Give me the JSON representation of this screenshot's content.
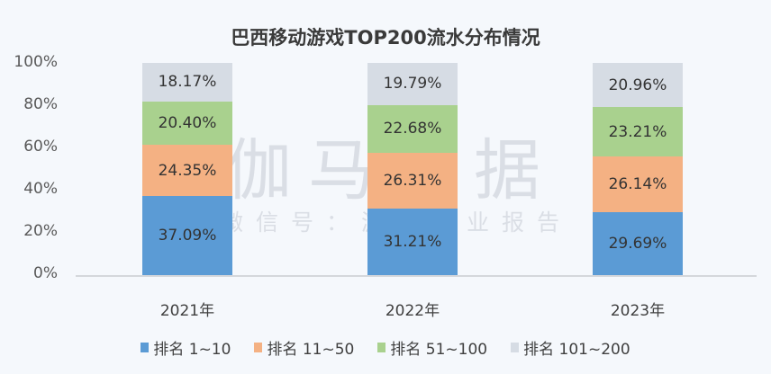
{
  "chart_data": {
    "type": "bar",
    "stacked": true,
    "title": "巴西移动游戏TOP200流水分布情况",
    "xlabel": "",
    "ylabel": "",
    "ylim": [
      0,
      100
    ],
    "yticks": [
      "0%",
      "20%",
      "40%",
      "60%",
      "80%",
      "100%"
    ],
    "categories": [
      "2021年",
      "2022年",
      "2023年"
    ],
    "series": [
      {
        "name": "排名 1~10",
        "color": "#5b9bd5",
        "values": [
          37.09,
          31.21,
          29.69
        ],
        "labels": [
          "37.09%",
          "31.21%",
          "29.69%"
        ]
      },
      {
        "name": "排名 11~50",
        "color": "#f4b183",
        "values": [
          24.35,
          26.31,
          26.14
        ],
        "labels": [
          "24.35%",
          "26.31%",
          "26.14%"
        ]
      },
      {
        "name": "排名 51~100",
        "color": "#a9d18e",
        "values": [
          20.4,
          22.68,
          23.21
        ],
        "labels": [
          "20.40%",
          "22.68%",
          "23.21%"
        ]
      },
      {
        "name": "排名 101~200",
        "color": "#d6dce4",
        "values": [
          18.17,
          19.79,
          20.96
        ],
        "labels": [
          "18.17%",
          "19.79%",
          "20.96%"
        ]
      }
    ],
    "grid": false,
    "legend_position": "bottom"
  },
  "watermark": {
    "main": "伽马数据",
    "sub": "微信号：游戏产业报告"
  }
}
